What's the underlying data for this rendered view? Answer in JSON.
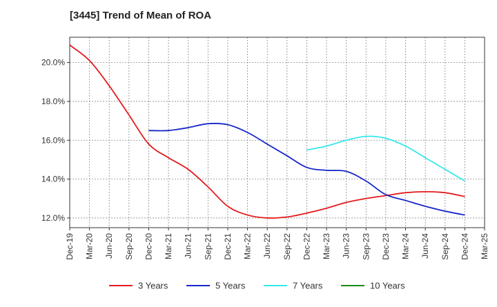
{
  "chart_data": {
    "type": "line",
    "title": "[3445]  Trend of Mean of ROA",
    "xlabel": "",
    "ylabel": "",
    "x_labels": [
      "Dec-19",
      "Mar-20",
      "Jun-20",
      "Sep-20",
      "Dec-20",
      "Mar-21",
      "Jun-21",
      "Sep-21",
      "Dec-21",
      "Mar-22",
      "Jun-22",
      "Sep-22",
      "Dec-22",
      "Mar-23",
      "Jun-23",
      "Sep-23",
      "Dec-23",
      "Mar-24",
      "Jun-24",
      "Sep-24",
      "Dec-24",
      "Mar-25"
    ],
    "ylim": [
      11.5,
      21.3
    ],
    "y_ticks": [
      12.0,
      14.0,
      16.0,
      18.0,
      20.0
    ],
    "y_tick_labels": [
      "12.0%",
      "14.0%",
      "16.0%",
      "18.0%",
      "20.0%"
    ],
    "grid": true,
    "legend_position": "bottom",
    "series": [
      {
        "name": "3 Years",
        "color": "#e31a1c",
        "values": [
          20.9,
          20.1,
          18.8,
          17.3,
          15.8,
          15.1,
          14.5,
          13.6,
          12.6,
          12.15,
          12.0,
          12.05,
          12.25,
          12.5,
          12.8,
          13.0,
          13.15,
          13.3,
          13.35,
          13.3,
          13.1,
          null
        ]
      },
      {
        "name": "5 Years",
        "color": "#1426c8",
        "values": [
          null,
          null,
          null,
          null,
          16.5,
          16.5,
          16.65,
          16.85,
          16.8,
          16.4,
          15.8,
          15.2,
          14.6,
          14.45,
          14.4,
          13.9,
          13.2,
          12.9,
          12.6,
          12.35,
          12.15,
          null
        ]
      },
      {
        "name": "7 Years",
        "color": "#33e8ef",
        "values": [
          null,
          null,
          null,
          null,
          null,
          null,
          null,
          null,
          null,
          null,
          null,
          null,
          15.5,
          15.7,
          16.0,
          16.2,
          16.1,
          15.7,
          15.1,
          14.5,
          13.9,
          null
        ]
      },
      {
        "name": "10 Years",
        "color": "#1a8a1a",
        "values": [
          null,
          null,
          null,
          null,
          null,
          null,
          null,
          null,
          null,
          null,
          null,
          null,
          null,
          null,
          null,
          null,
          null,
          null,
          null,
          null,
          null,
          null
        ]
      }
    ]
  }
}
